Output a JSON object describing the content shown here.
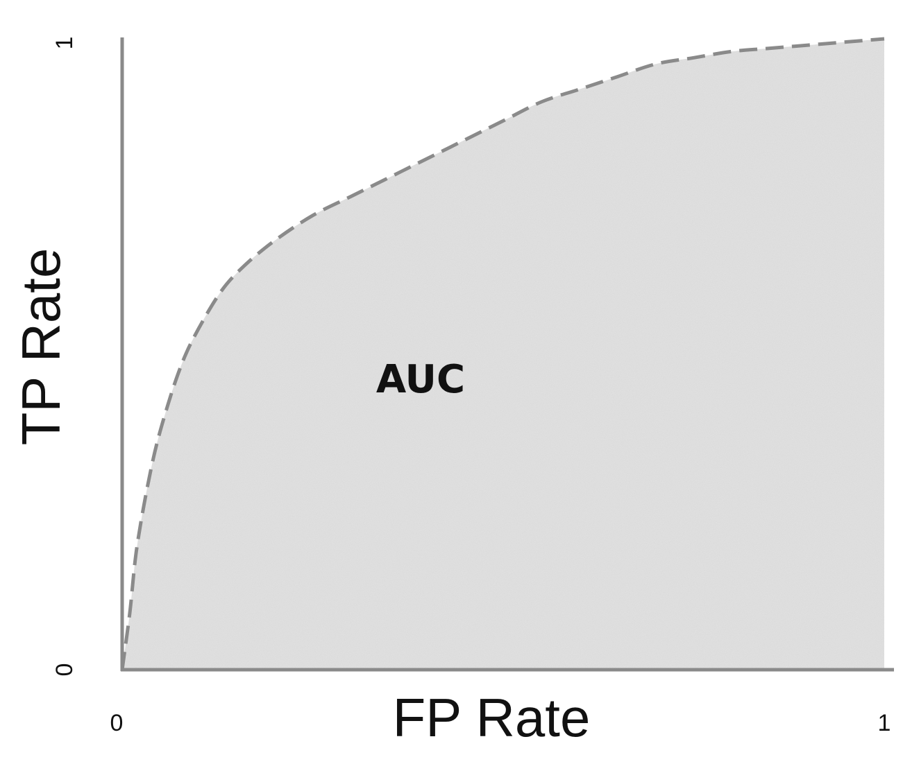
{
  "chart_data": {
    "type": "area",
    "xlabel": "FP Rate",
    "ylabel": "TP Rate",
    "xlim": [
      0,
      1
    ],
    "ylim": [
      0,
      1
    ],
    "x_ticks": [
      "0",
      "1"
    ],
    "y_ticks": [
      "0",
      "1"
    ],
    "annotation": "AUC",
    "grid": false,
    "series": [
      {
        "style": "dashed",
        "x": [
          0,
          0.01,
          0.02,
          0.04,
          0.06,
          0.08,
          0.1,
          0.13,
          0.16,
          0.2,
          0.25,
          0.3,
          0.35,
          0.4,
          0.45,
          0.5,
          0.55,
          0.6,
          0.65,
          0.7,
          0.75,
          0.8,
          0.85,
          0.9,
          0.95,
          1.0
        ],
        "y": [
          0,
          0.09,
          0.2,
          0.33,
          0.42,
          0.49,
          0.54,
          0.6,
          0.64,
          0.68,
          0.72,
          0.75,
          0.78,
          0.81,
          0.84,
          0.87,
          0.9,
          0.92,
          0.94,
          0.96,
          0.97,
          0.98,
          0.985,
          0.99,
          0.995,
          1.0
        ]
      }
    ],
    "colors": {
      "fill": "#e3e3e3",
      "curve": "#8a8a8a",
      "axis": "#8a8a8a"
    }
  }
}
